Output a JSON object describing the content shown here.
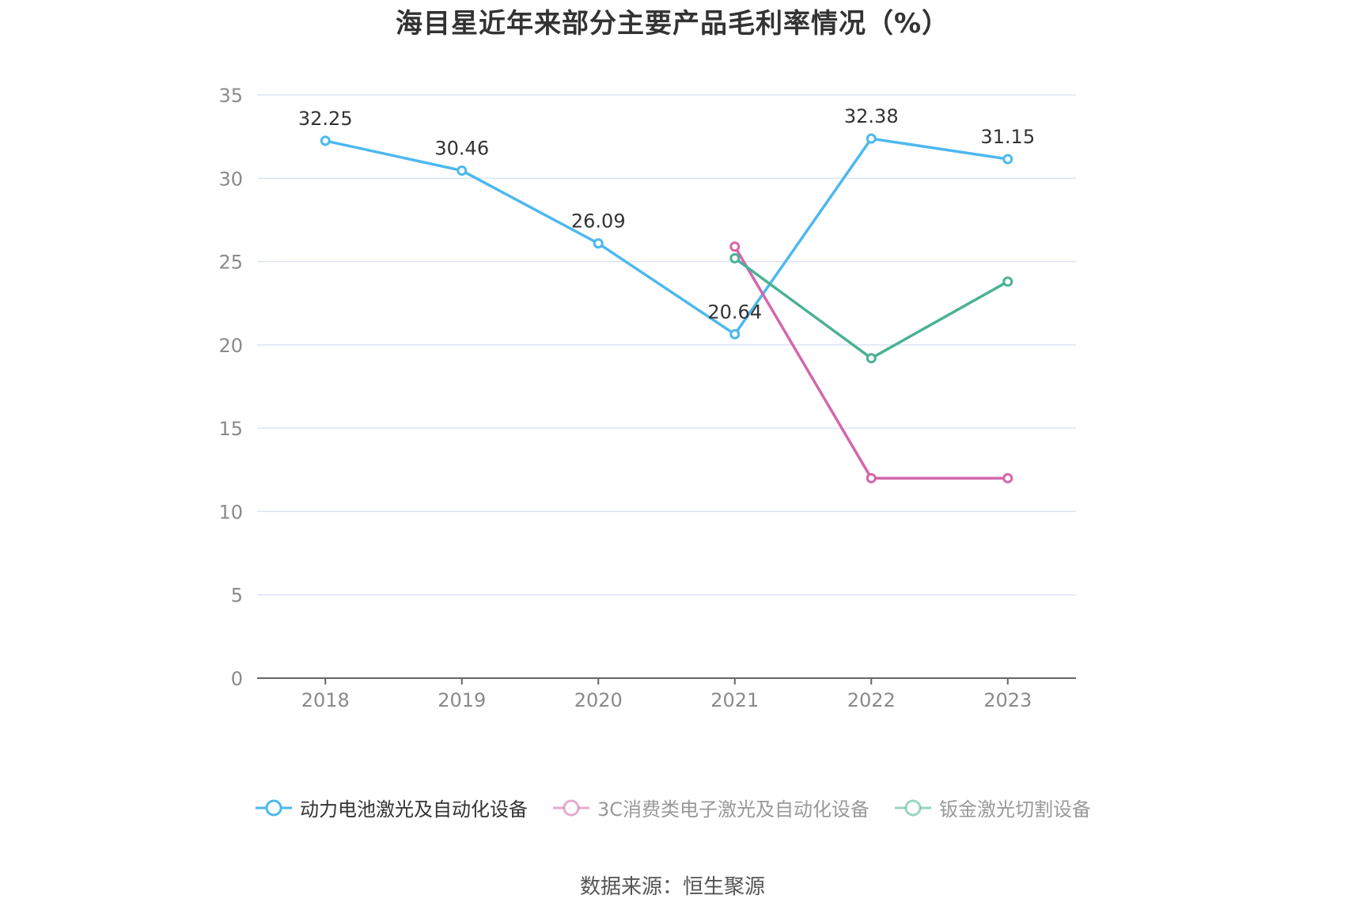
{
  "title": "海目星近年来部分主要产品毛利率情况（%）",
  "source": "数据来源：恒生聚源",
  "colors": {
    "series0": "#4db8ef",
    "series1": "#d466ac",
    "series2": "#4bb194",
    "grid": "#dde3f5",
    "axis": "#666666"
  },
  "legend": [
    {
      "label": "动力电池激光及自动化设备",
      "icon": "circle-line-marker",
      "text_color": "#333333",
      "faded": false
    },
    {
      "label": "3C消费类电子激光及自动化设备",
      "icon": "circle-line-marker",
      "text_color": "#999999",
      "faded": true
    },
    {
      "label": "钣金激光切割设备",
      "icon": "circle-line-marker",
      "text_color": "#999999",
      "faded": true
    }
  ],
  "chart_data": {
    "type": "line",
    "title": "海目星近年来部分主要产品毛利率情况（%）",
    "xlabel": "",
    "ylabel": "",
    "categories": [
      "2018",
      "2019",
      "2020",
      "2021",
      "2022",
      "2023"
    ],
    "ylim": [
      0,
      35
    ],
    "yticks": [
      0,
      5,
      10,
      15,
      20,
      25,
      30,
      35
    ],
    "grid": true,
    "legend_position": "bottom",
    "series": [
      {
        "name": "动力电池激光及自动化设备",
        "values": [
          32.25,
          30.46,
          26.09,
          20.64,
          32.38,
          31.15
        ],
        "labels": [
          "32.25",
          "30.46",
          "26.09",
          "20.64",
          "32.38",
          "31.15"
        ]
      },
      {
        "name": "3C消费类电子激光及自动化设备",
        "values": [
          null,
          null,
          null,
          25.9,
          12.0,
          12.0
        ],
        "labels": []
      },
      {
        "name": "钣金激光切割设备",
        "values": [
          null,
          null,
          null,
          25.2,
          19.2,
          23.8
        ],
        "labels": []
      }
    ]
  }
}
